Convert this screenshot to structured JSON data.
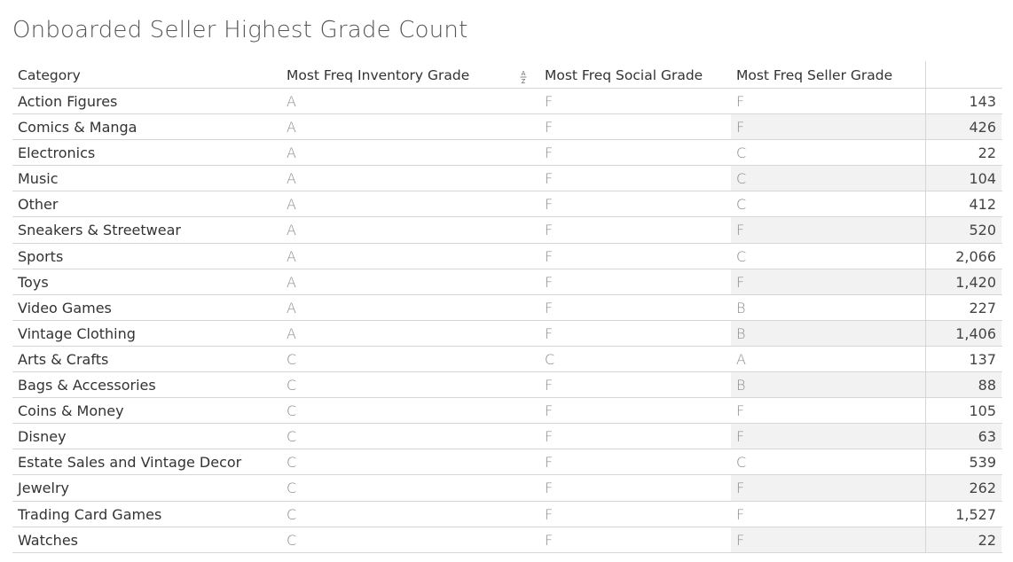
{
  "title": "Onboarded Seller Highest Grade Count",
  "columns": {
    "category": "Category",
    "inventory_grade": "Most Freq Inventory Grade",
    "social_grade": "Most Freq Social Grade",
    "seller_grade": "Most Freq Seller Grade",
    "count": ""
  },
  "sort_icon_glyph": "A↓Z",
  "colors": {
    "seller_band_shaded": "#f2f2f2",
    "measure_band_shaded": "#f2f2f2",
    "gridline": "#d6d6d6"
  },
  "chart_data": {
    "type": "table",
    "rows": [
      {
        "category": "Action Figures",
        "inventory_grade": "A",
        "social_grade": "F",
        "seller_grade": "F",
        "count": "143",
        "shaded": false
      },
      {
        "category": "Comics & Manga",
        "inventory_grade": "A",
        "social_grade": "F",
        "seller_grade": "F",
        "count": "426",
        "shaded": true
      },
      {
        "category": "Electronics",
        "inventory_grade": "A",
        "social_grade": "F",
        "seller_grade": "C",
        "count": "22",
        "shaded": false
      },
      {
        "category": "Music",
        "inventory_grade": "A",
        "social_grade": "F",
        "seller_grade": "C",
        "count": "104",
        "shaded": true
      },
      {
        "category": "Other",
        "inventory_grade": "A",
        "social_grade": "F",
        "seller_grade": "C",
        "count": "412",
        "shaded": false
      },
      {
        "category": "Sneakers & Streetwear",
        "inventory_grade": "A",
        "social_grade": "F",
        "seller_grade": "F",
        "count": "520",
        "shaded": true
      },
      {
        "category": "Sports",
        "inventory_grade": "A",
        "social_grade": "F",
        "seller_grade": "C",
        "count": "2,066",
        "shaded": false
      },
      {
        "category": "Toys",
        "inventory_grade": "A",
        "social_grade": "F",
        "seller_grade": "F",
        "count": "1,420",
        "shaded": true
      },
      {
        "category": "Video Games",
        "inventory_grade": "A",
        "social_grade": "F",
        "seller_grade": "B",
        "count": "227",
        "shaded": false
      },
      {
        "category": "Vintage Clothing",
        "inventory_grade": "A",
        "social_grade": "F",
        "seller_grade": "B",
        "count": "1,406",
        "shaded": true
      },
      {
        "category": "Arts & Crafts",
        "inventory_grade": "C",
        "social_grade": "C",
        "seller_grade": "A",
        "count": "137",
        "shaded": false
      },
      {
        "category": "Bags & Accessories",
        "inventory_grade": "C",
        "social_grade": "F",
        "seller_grade": "B",
        "count": "88",
        "shaded": true
      },
      {
        "category": "Coins & Money",
        "inventory_grade": "C",
        "social_grade": "F",
        "seller_grade": "F",
        "count": "105",
        "shaded": false
      },
      {
        "category": "Disney",
        "inventory_grade": "C",
        "social_grade": "F",
        "seller_grade": "F",
        "count": "63",
        "shaded": true
      },
      {
        "category": "Estate Sales and Vintage Decor",
        "inventory_grade": "C",
        "social_grade": "F",
        "seller_grade": "C",
        "count": "539",
        "shaded": false
      },
      {
        "category": "Jewelry",
        "inventory_grade": "C",
        "social_grade": "F",
        "seller_grade": "F",
        "count": "262",
        "shaded": true
      },
      {
        "category": "Trading Card Games",
        "inventory_grade": "C",
        "social_grade": "F",
        "seller_grade": "F",
        "count": "1,527",
        "shaded": false
      },
      {
        "category": "Watches",
        "inventory_grade": "C",
        "social_grade": "F",
        "seller_grade": "F",
        "count": "22",
        "shaded": true
      }
    ]
  }
}
